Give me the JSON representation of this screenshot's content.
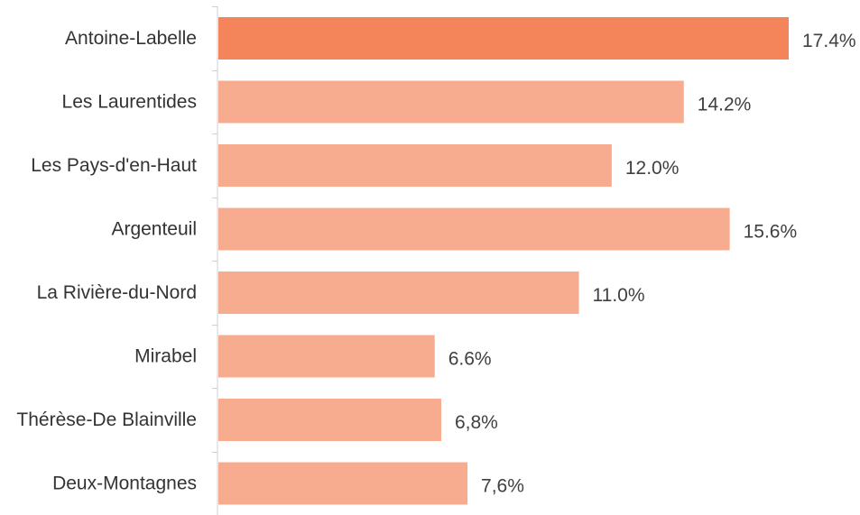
{
  "chart_data": {
    "type": "bar",
    "orientation": "horizontal",
    "categories": [
      "Antoine-Labelle",
      "Les Laurentides",
      "Les Pays-d'en-Haut",
      "Argenteuil",
      "La Rivière-du-Nord",
      "Mirabel",
      "Thérèse-De Blainville",
      "Deux-Montagnes"
    ],
    "values": [
      17.4,
      14.2,
      12.0,
      15.6,
      11.0,
      6.6,
      6.8,
      7.6
    ],
    "value_labels": [
      "17.4%",
      "14.2%",
      "12.0%",
      "15.6%",
      "11.0%",
      "6.6%",
      "6,8%",
      "7,6%"
    ],
    "highlight_index": 0,
    "colors": {
      "highlight": "#F4845A",
      "default": "#F8AC8F"
    },
    "xlim": [
      0,
      17.4
    ],
    "grid": false,
    "legend": "none"
  }
}
